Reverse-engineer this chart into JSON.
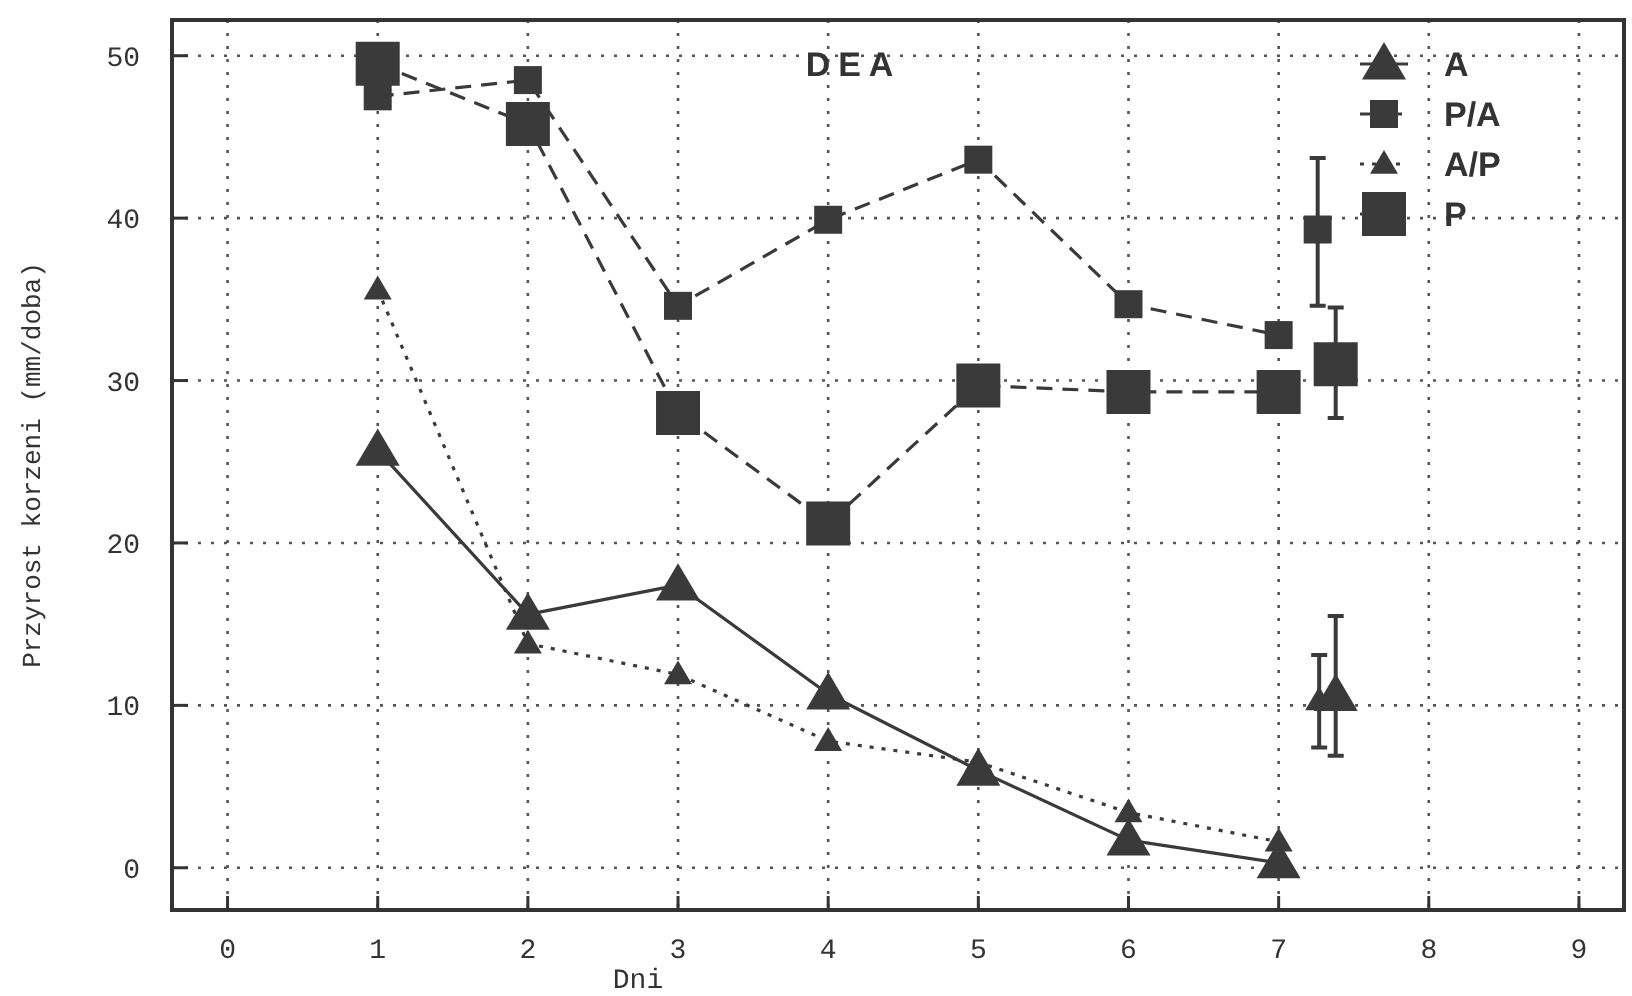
{
  "chart_data": {
    "type": "line",
    "title": "DEA",
    "xlabel": "Dni",
    "ylabel": "Przyrost korzeni (mm/doba)",
    "xlim": [
      -0.37,
      9.3
    ],
    "ylim": [
      -2.6,
      52.2
    ],
    "xticks": [
      0,
      1,
      2,
      3,
      4,
      5,
      6,
      7,
      8,
      9
    ],
    "yticks": [
      0,
      10,
      20,
      30,
      40,
      50
    ],
    "grid": true,
    "legend": "top right",
    "series": [
      {
        "name": "A",
        "color": "#3a3a3a",
        "marker": "triangle",
        "line_style": "solid",
        "x": [
          1,
          2,
          3,
          4,
          5,
          6,
          7
        ],
        "values": [
          25.7,
          15.6,
          17.4,
          10.7,
          6.0,
          1.7,
          0.3
        ]
      },
      {
        "name": "P/A",
        "color": "#3a3a3a",
        "marker": "square",
        "line_style": "dashed",
        "x": [
          1,
          2,
          3,
          4,
          5,
          6,
          7
        ],
        "values": [
          47.5,
          48.5,
          34.6,
          39.9,
          43.6,
          34.7,
          32.8
        ]
      },
      {
        "name": "A/P",
        "color": "#3a3a3a",
        "marker": "triangle",
        "line_style": "dotted",
        "x": [
          1,
          2,
          3,
          4,
          5,
          6,
          7
        ],
        "values": [
          35.6,
          13.8,
          11.9,
          7.8,
          6.5,
          3.4,
          1.6
        ]
      },
      {
        "name": "P",
        "color": "#3a3a3a",
        "marker": "square",
        "line_style": "dashed",
        "x": [
          1,
          2,
          3,
          4,
          5,
          6,
          7
        ],
        "values": [
          49.5,
          45.8,
          28.0,
          21.2,
          29.7,
          29.3,
          29.3
        ]
      },
      {
        "type": "scatter",
        "color": "#3a3a3a",
        "marker": "triangle",
        "x": [
          7.38
        ],
        "values": [
          10.6
        ],
        "errors": [
          [
            6.9,
            15.5
          ]
        ]
      },
      {
        "type": "scatter",
        "color": "#3a3a3a",
        "marker": "square",
        "x": [
          7.26
        ],
        "values": [
          39.3
        ],
        "errors": [
          [
            34.6,
            43.7
          ]
        ]
      },
      {
        "type": "scatter",
        "color": "#3a3a3a",
        "marker": "triangle",
        "x": [
          7.27
        ],
        "values": [
          10.3
        ],
        "errors": [
          [
            7.4,
            13.1
          ]
        ]
      },
      {
        "type": "scatter",
        "color": "#3a3a3a",
        "marker": "square",
        "x": [
          7.38
        ],
        "values": [
          31.0
        ],
        "errors": [
          [
            27.7,
            34.5
          ]
        ]
      }
    ]
  }
}
